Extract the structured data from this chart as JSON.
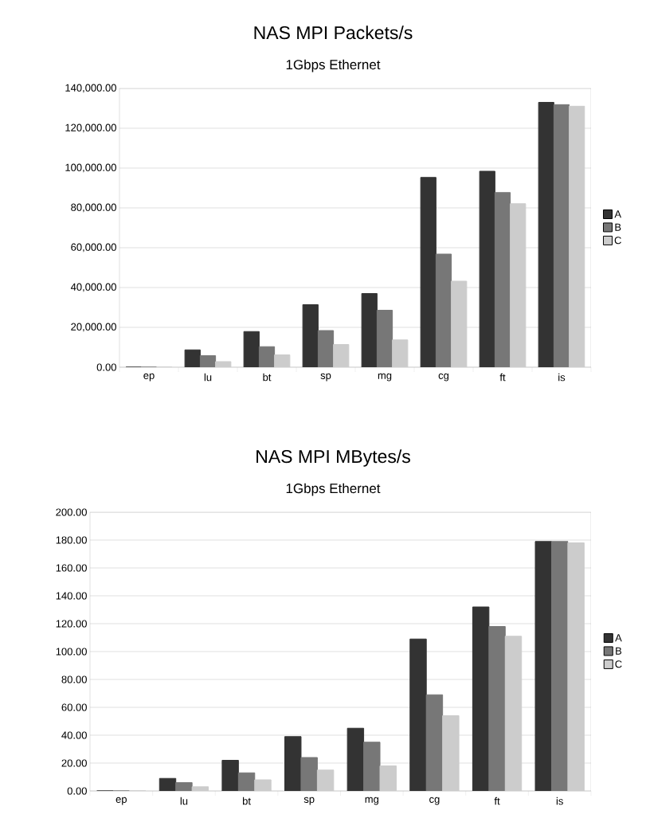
{
  "chart_data": [
    {
      "type": "bar",
      "title": "NAS MPI Packets/s",
      "subtitle": "1Gbps Ethernet",
      "categories": [
        "ep",
        "lu",
        "bt",
        "sp",
        "mg",
        "cg",
        "ft",
        "is"
      ],
      "series": [
        {
          "name": "A",
          "color": "#333333",
          "values": [
            0,
            8700,
            17900,
            31400,
            37000,
            95300,
            98400,
            133000
          ]
        },
        {
          "name": "B",
          "color": "#777777",
          "values": [
            0,
            5800,
            10300,
            18400,
            28600,
            56800,
            87700,
            131900
          ]
        },
        {
          "name": "C",
          "color": "#cccccc",
          "values": [
            0,
            2800,
            6200,
            11400,
            13700,
            43200,
            82100,
            131100
          ]
        }
      ],
      "ylim": [
        0,
        140000
      ],
      "yticks": [
        {
          "value": 0,
          "label": "0.00"
        },
        {
          "value": 20000,
          "label": "20,000.00"
        },
        {
          "value": 40000,
          "label": "40,000.00"
        },
        {
          "value": 60000,
          "label": "60,000.00"
        },
        {
          "value": 80000,
          "label": "80,000.00"
        },
        {
          "value": 100000,
          "label": "100,000.00"
        },
        {
          "value": 120000,
          "label": "120,000.00"
        },
        {
          "value": 140000,
          "label": "140,000.00"
        }
      ],
      "grid": "y",
      "legend": "right"
    },
    {
      "type": "bar",
      "title": "NAS MPI MBytes/s",
      "subtitle": "1Gbps Ethernet",
      "categories": [
        "ep",
        "lu",
        "bt",
        "sp",
        "mg",
        "cg",
        "ft",
        "is"
      ],
      "series": [
        {
          "name": "A",
          "color": "#333333",
          "values": [
            0,
            9,
            22,
            39,
            45,
            109,
            132,
            179
          ]
        },
        {
          "name": "B",
          "color": "#777777",
          "values": [
            0,
            6,
            13,
            24,
            35,
            69,
            118,
            179
          ]
        },
        {
          "name": "C",
          "color": "#cccccc",
          "values": [
            0,
            3,
            8,
            15,
            18,
            54,
            111,
            178
          ]
        }
      ],
      "ylim": [
        0,
        200
      ],
      "yticks": [
        {
          "value": 0,
          "label": "0.00"
        },
        {
          "value": 20,
          "label": "20.00"
        },
        {
          "value": 40,
          "label": "40.00"
        },
        {
          "value": 60,
          "label": "60.00"
        },
        {
          "value": 80,
          "label": "80.00"
        },
        {
          "value": 100,
          "label": "100.00"
        },
        {
          "value": 120,
          "label": "120.00"
        },
        {
          "value": 140,
          "label": "140.00"
        },
        {
          "value": 160,
          "label": "160.00"
        },
        {
          "value": 180,
          "label": "180.00"
        },
        {
          "value": 200,
          "label": "200.00"
        }
      ],
      "grid": "y",
      "legend": "right"
    }
  ]
}
